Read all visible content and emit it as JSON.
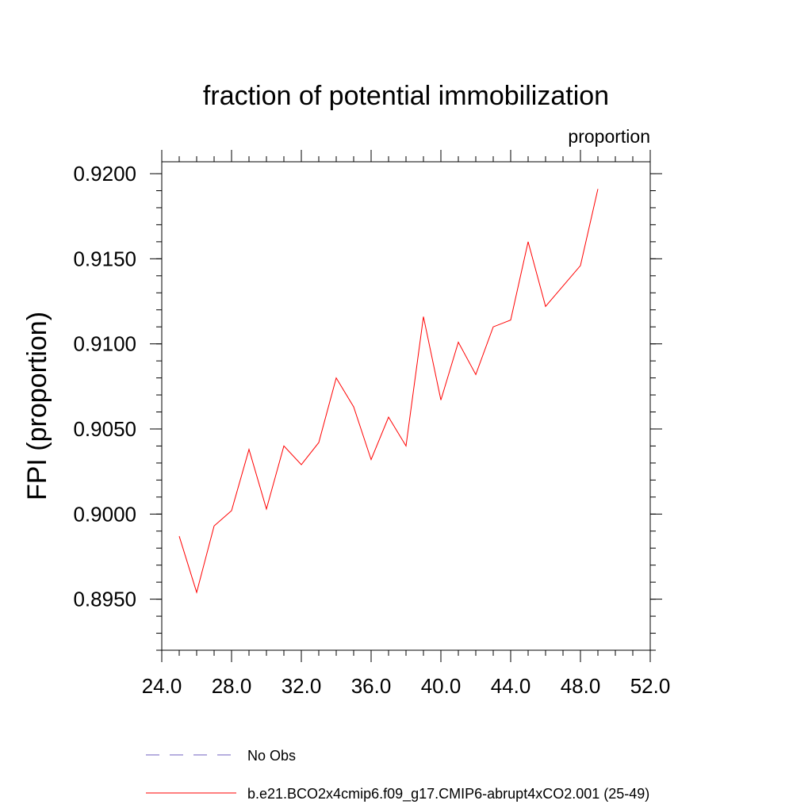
{
  "chart_data": {
    "type": "line",
    "title": "fraction of potential immobilization",
    "units_label": "proportion",
    "xlabel": "",
    "ylabel": "FPI  (proportion)",
    "xlim": [
      24,
      52
    ],
    "ylim": [
      0.892,
      0.9207
    ],
    "x_ticks": [
      24,
      28,
      32,
      36,
      40,
      44,
      48,
      52
    ],
    "x_tick_labels": [
      "24.0",
      "28.0",
      "32.0",
      "36.0",
      "40.0",
      "44.0",
      "48.0",
      "52.0"
    ],
    "x_minor_step": 1,
    "y_ticks": [
      0.895,
      0.9,
      0.905,
      0.91,
      0.915,
      0.92
    ],
    "y_tick_labels": [
      "0.8950",
      "0.9000",
      "0.9050",
      "0.9100",
      "0.9150",
      "0.9200"
    ],
    "y_minor_step": 0.001,
    "series": [
      {
        "name": "b.e21.BCO2x4cmip6.f09_g17.CMIP6-abrupt4xCO2.001 (25-49)",
        "color": "#ff0000",
        "style": "solid",
        "x": [
          25,
          26,
          27,
          28,
          29,
          30,
          31,
          32,
          33,
          34,
          35,
          36,
          37,
          38,
          39,
          40,
          41,
          42,
          43,
          44,
          45,
          46,
          47,
          48,
          49
        ],
        "y": [
          0.8987,
          0.8954,
          0.8993,
          0.9002,
          0.9038,
          0.9003,
          0.904,
          0.9029,
          0.9042,
          0.908,
          0.9063,
          0.9032,
          0.9057,
          0.904,
          0.9116,
          0.9067,
          0.9101,
          0.9082,
          0.911,
          0.9114,
          0.916,
          0.9122,
          0.9134,
          0.9146,
          0.9191
        ]
      }
    ],
    "legend": [
      {
        "label": "No Obs",
        "color": "#6f5fbf",
        "style": "dashed"
      },
      {
        "label": "b.e21.BCO2x4cmip6.f09_g17.CMIP6-abrupt4xCO2.001 (25-49)",
        "color": "#ff0000",
        "style": "solid"
      }
    ],
    "legend_position": "bottom"
  }
}
